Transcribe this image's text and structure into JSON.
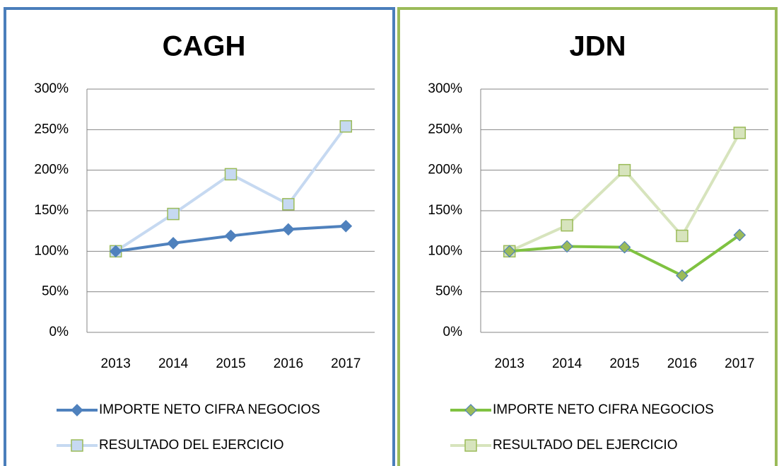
{
  "chart_data": [
    {
      "type": "line",
      "title": "CAGH",
      "border_color": "#4a7ebb",
      "categories": [
        "2013",
        "2014",
        "2015",
        "2016",
        "2017"
      ],
      "ylim": [
        0,
        300
      ],
      "yticks": [
        {
          "value": 0,
          "label": "0%"
        },
        {
          "value": 50,
          "label": "50%"
        },
        {
          "value": 100,
          "label": "100%"
        },
        {
          "value": 150,
          "label": "150%"
        },
        {
          "value": 200,
          "label": "200%"
        },
        {
          "value": 250,
          "label": "250%"
        },
        {
          "value": 300,
          "label": "300%"
        }
      ],
      "grid": true,
      "legend": "bottom",
      "series": [
        {
          "name": "IMPORTE NETO CIFRA NEGOCIOS",
          "color": "#4f81bd",
          "marker": "diamond",
          "marker_fill": "#4f81bd",
          "marker_stroke": "#4f81bd",
          "values": [
            100,
            110,
            119,
            127,
            131
          ]
        },
        {
          "name": "RESULTADO DEL EJERCICIO",
          "color": "#c6d9f1",
          "marker": "square",
          "marker_fill": "#c6d9f1",
          "marker_stroke": "#9bbb59",
          "values": [
            100,
            146,
            195,
            158,
            254
          ]
        }
      ]
    },
    {
      "type": "line",
      "title": "JDN",
      "border_color": "#9bbb59",
      "categories": [
        "2013",
        "2014",
        "2015",
        "2016",
        "2017"
      ],
      "ylim": [
        0,
        300
      ],
      "yticks": [
        {
          "value": 0,
          "label": "0%"
        },
        {
          "value": 50,
          "label": "50%"
        },
        {
          "value": 100,
          "label": "100%"
        },
        {
          "value": 150,
          "label": "150%"
        },
        {
          "value": 200,
          "label": "200%"
        },
        {
          "value": 250,
          "label": "250%"
        },
        {
          "value": 300,
          "label": "300%"
        }
      ],
      "grid": true,
      "legend": "bottom",
      "series": [
        {
          "name": "IMPORTE NETO CIFRA NEGOCIOS",
          "color": "#7fc241",
          "marker": "diamond",
          "marker_fill": "#9bbb59",
          "marker_stroke": "#4f81bd",
          "values": [
            100,
            106,
            105,
            70,
            120
          ]
        },
        {
          "name": "RESULTADO DEL EJERCICIO",
          "color": "#d7e4bd",
          "marker": "square",
          "marker_fill": "#d7e4bd",
          "marker_stroke": "#9bbb59",
          "values": [
            100,
            132,
            200,
            119,
            246
          ]
        }
      ]
    }
  ]
}
